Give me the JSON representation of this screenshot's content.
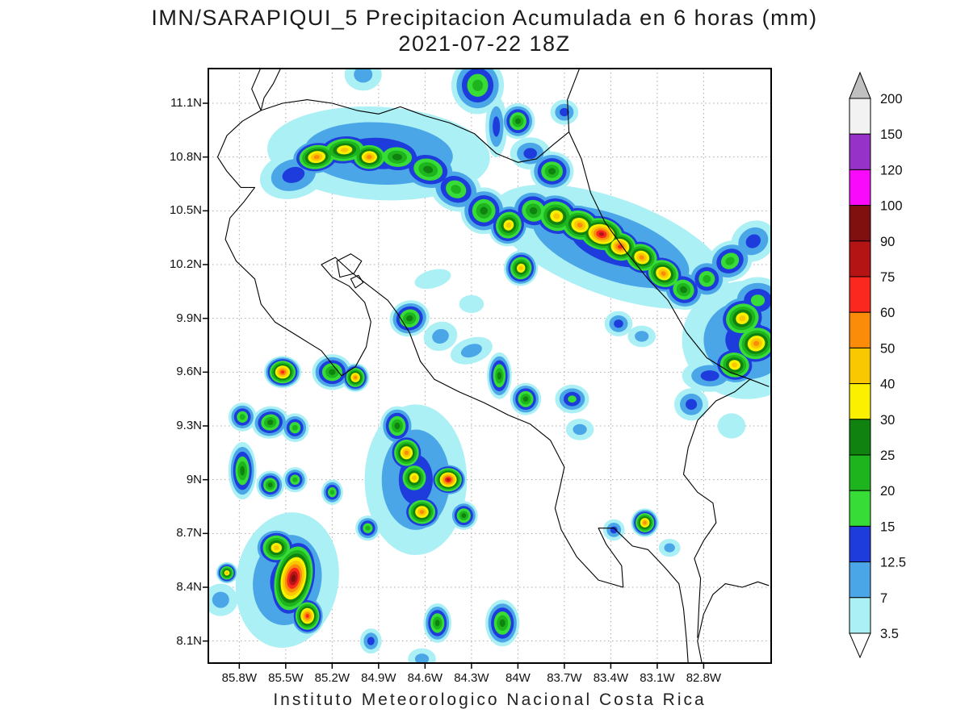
{
  "footer": "Instituto Meteorologico Nacional Costa Rica",
  "chart_data": {
    "type": "heatmap",
    "title": "IMN/SARAPIQUI_5 Precipitacion Acumulada en 6 horas (mm)",
    "subtitle": "2021-07-22 18Z",
    "units": "mm",
    "grid": true,
    "legend_position": "right",
    "x_range_lon_w": [
      86.0,
      82.364
    ],
    "y_range_lat_n": [
      7.977,
      11.2935
    ],
    "x_ticks": {
      "values": [
        85.8,
        85.5,
        85.2,
        84.9,
        84.6,
        84.3,
        84.0,
        83.7,
        83.4,
        83.1,
        82.8
      ],
      "labels": [
        "85.8W",
        "85.5W",
        "85.2W",
        "84.9W",
        "84.6W",
        "84.3W",
        "84W",
        "83.7W",
        "83.4W",
        "83.1W",
        "82.8W"
      ]
    },
    "y_ticks": {
      "values": [
        11.1,
        10.8,
        10.5,
        10.2,
        9.9,
        9.6,
        9.3,
        9.0,
        8.7,
        8.4,
        8.1
      ],
      "labels": [
        "11.1N",
        "10.8N",
        "10.5N",
        "10.2N",
        "9.9N",
        "9.6N",
        "9.3N",
        "9N",
        "8.7N",
        "8.4N",
        "8.1N"
      ]
    },
    "colorbar": {
      "levels": [
        3.5,
        7,
        12.5,
        15,
        20,
        25,
        30,
        40,
        50,
        60,
        75,
        90,
        100,
        120,
        150,
        200
      ],
      "labels_top_to_bottom": [
        "200",
        "150",
        "120",
        "100",
        "90",
        "75",
        "60",
        "50",
        "40",
        "30",
        "25",
        "20",
        "15",
        "12.5",
        "7",
        "3.5"
      ],
      "band_colors_low_to_high": [
        "#AAF0F5",
        "#4BA6E8",
        "#1E3CDC",
        "#37DC37",
        "#1EB41E",
        "#0F820F",
        "#FAF000",
        "#FAC800",
        "#FA8C0A",
        "#FA281E",
        "#B41414",
        "#801010",
        "#FA0AFA",
        "#9632C8",
        "#F2F2F2"
      ],
      "under_color": "#FFFFFF",
      "over_color": "#C0C0C0"
    },
    "cells_format": [
      "lon_w",
      "lat_n",
      "max_mm",
      "rx_deg",
      "ry_deg",
      "rotate_deg"
    ],
    "cells": [
      [
        85.45,
        10.7,
        13,
        0.22,
        0.13,
        -15
      ],
      [
        85.3,
        10.8,
        50,
        0.17,
        0.1,
        -8
      ],
      [
        85.12,
        10.84,
        40,
        0.2,
        0.1,
        -4
      ],
      [
        84.96,
        10.8,
        50,
        0.15,
        0.1,
        0
      ],
      [
        84.78,
        10.8,
        28,
        0.19,
        0.11,
        4
      ],
      [
        84.58,
        10.73,
        28,
        0.19,
        0.12,
        14
      ],
      [
        84.4,
        10.62,
        22,
        0.17,
        0.12,
        24
      ],
      [
        84.9,
        10.82,
        13,
        0.72,
        0.26,
        3
      ],
      [
        85.0,
        11.26,
        7,
        0.12,
        0.09,
        0
      ],
      [
        84.26,
        11.2,
        22,
        0.17,
        0.16,
        0
      ],
      [
        84.14,
        10.97,
        13,
        0.07,
        0.17,
        0
      ],
      [
        84.0,
        11.0,
        28,
        0.11,
        0.1,
        0
      ],
      [
        83.7,
        11.05,
        13,
        0.09,
        0.07,
        0
      ],
      [
        84.22,
        10.5,
        28,
        0.15,
        0.13,
        28
      ],
      [
        84.06,
        10.42,
        40,
        0.13,
        0.12,
        28
      ],
      [
        83.9,
        10.5,
        28,
        0.15,
        0.12,
        20
      ],
      [
        83.75,
        10.47,
        40,
        0.17,
        0.13,
        18
      ],
      [
        83.6,
        10.42,
        50,
        0.17,
        0.12,
        18
      ],
      [
        83.46,
        10.37,
        75,
        0.19,
        0.12,
        14
      ],
      [
        83.34,
        10.3,
        60,
        0.15,
        0.11,
        14
      ],
      [
        83.2,
        10.24,
        50,
        0.15,
        0.11,
        20
      ],
      [
        83.06,
        10.15,
        50,
        0.15,
        0.11,
        24
      ],
      [
        82.93,
        10.06,
        28,
        0.14,
        0.11,
        28
      ],
      [
        82.78,
        10.12,
        22,
        0.13,
        0.11,
        0
      ],
      [
        82.63,
        10.22,
        22,
        0.15,
        0.11,
        -28
      ],
      [
        82.48,
        10.33,
        13,
        0.15,
        0.11,
        -32
      ],
      [
        83.4,
        10.3,
        13,
        0.8,
        0.27,
        20
      ],
      [
        83.98,
        10.18,
        40,
        0.11,
        0.1,
        15
      ],
      [
        83.78,
        10.72,
        28,
        0.14,
        0.11,
        0
      ],
      [
        83.92,
        10.82,
        13,
        0.13,
        0.09,
        0
      ],
      [
        82.55,
        9.9,
        40,
        0.17,
        0.13,
        -18
      ],
      [
        82.46,
        9.76,
        50,
        0.17,
        0.13,
        -15
      ],
      [
        82.6,
        9.64,
        40,
        0.15,
        0.11,
        8
      ],
      [
        82.76,
        9.58,
        13,
        0.18,
        0.09,
        0
      ],
      [
        82.45,
        10.0,
        16,
        0.18,
        0.13,
        0
      ],
      [
        82.52,
        9.78,
        13,
        0.42,
        0.33,
        0
      ],
      [
        82.88,
        9.42,
        12.5,
        0.11,
        0.09,
        0
      ],
      [
        82.62,
        9.3,
        3.5,
        0.09,
        0.07,
        0
      ],
      [
        84.7,
        9.9,
        28,
        0.13,
        0.1,
        -18
      ],
      [
        84.5,
        9.8,
        10,
        0.11,
        0.08,
        -18
      ],
      [
        84.3,
        9.72,
        7,
        0.14,
        0.07,
        -18
      ],
      [
        84.12,
        9.58,
        28,
        0.08,
        0.13,
        0
      ],
      [
        83.95,
        9.45,
        28,
        0.1,
        0.09,
        0
      ],
      [
        83.65,
        9.45,
        16,
        0.11,
        0.08,
        0
      ],
      [
        83.6,
        9.28,
        7,
        0.09,
        0.06,
        0
      ],
      [
        83.35,
        9.87,
        13,
        0.09,
        0.07,
        0
      ],
      [
        83.2,
        9.8,
        7,
        0.09,
        0.06,
        0
      ],
      [
        84.55,
        10.12,
        3.5,
        0.12,
        0.05,
        -15
      ],
      [
        84.3,
        9.98,
        3.5,
        0.08,
        0.05,
        0
      ],
      [
        85.52,
        9.6,
        60,
        0.12,
        0.09,
        0
      ],
      [
        85.2,
        9.6,
        28,
        0.13,
        0.1,
        0
      ],
      [
        85.05,
        9.57,
        50,
        0.09,
        0.08,
        0
      ],
      [
        85.78,
        9.35,
        22,
        0.09,
        0.08,
        0
      ],
      [
        85.6,
        9.32,
        28,
        0.12,
        0.09,
        -12
      ],
      [
        85.44,
        9.29,
        22,
        0.09,
        0.08,
        0
      ],
      [
        85.78,
        9.05,
        28,
        0.09,
        0.16,
        0
      ],
      [
        85.6,
        8.97,
        28,
        0.09,
        0.08,
        0
      ],
      [
        85.44,
        9.0,
        22,
        0.08,
        0.07,
        0
      ],
      [
        85.2,
        8.93,
        22,
        0.07,
        0.07,
        0
      ],
      [
        84.78,
        9.3,
        28,
        0.11,
        0.11,
        0
      ],
      [
        84.72,
        9.15,
        50,
        0.12,
        0.11,
        0
      ],
      [
        84.67,
        9.01,
        40,
        0.12,
        0.11,
        0
      ],
      [
        84.45,
        9.0,
        75,
        0.12,
        0.09,
        0
      ],
      [
        84.62,
        8.82,
        50,
        0.13,
        0.1,
        0
      ],
      [
        84.35,
        8.8,
        28,
        0.09,
        0.08,
        0
      ],
      [
        84.97,
        8.73,
        22,
        0.08,
        0.07,
        0
      ],
      [
        84.66,
        9.0,
        13,
        0.33,
        0.42,
        0
      ],
      [
        85.45,
        8.45,
        90,
        0.16,
        0.24,
        12
      ],
      [
        85.56,
        8.62,
        40,
        0.14,
        0.11,
        0
      ],
      [
        85.36,
        8.24,
        60,
        0.11,
        0.11,
        0
      ],
      [
        85.49,
        8.44,
        13,
        0.33,
        0.38,
        10
      ],
      [
        85.88,
        8.48,
        40,
        0.07,
        0.06,
        0
      ],
      [
        85.92,
        8.33,
        7,
        0.11,
        0.09,
        0
      ],
      [
        84.52,
        8.2,
        28,
        0.09,
        0.11,
        0
      ],
      [
        84.1,
        8.2,
        28,
        0.11,
        0.13,
        0
      ],
      [
        84.95,
        8.1,
        13,
        0.07,
        0.07,
        0
      ],
      [
        84.62,
        8.0,
        7,
        0.09,
        0.06,
        0
      ],
      [
        83.18,
        8.76,
        50,
        0.09,
        0.08,
        0
      ],
      [
        83.38,
        8.72,
        13,
        0.07,
        0.06,
        0
      ],
      [
        83.02,
        8.62,
        7,
        0.07,
        0.05,
        0
      ]
    ],
    "coastlines": [
      [
        [
          85.66,
          11.3
        ],
        [
          85.72,
          11.18
        ],
        [
          85.66,
          11.06
        ],
        [
          85.78,
          11.0
        ],
        [
          85.88,
          10.92
        ],
        [
          85.94,
          10.8
        ],
        [
          85.88,
          10.72
        ],
        [
          85.79,
          10.63
        ],
        [
          85.7,
          10.63
        ],
        [
          85.77,
          10.55
        ],
        [
          85.86,
          10.46
        ],
        [
          85.89,
          10.34
        ],
        [
          85.82,
          10.22
        ],
        [
          85.7,
          10.12
        ],
        [
          85.66,
          9.98
        ],
        [
          85.57,
          9.88
        ],
        [
          85.42,
          9.8
        ],
        [
          85.27,
          9.72
        ],
        [
          85.14,
          9.58
        ],
        [
          85.05,
          9.63
        ],
        [
          84.98,
          9.74
        ],
        [
          84.95,
          9.88
        ],
        [
          84.99,
          9.99
        ],
        [
          85.09,
          10.08
        ],
        [
          85.2,
          10.13
        ],
        [
          85.27,
          10.2
        ],
        [
          85.18,
          10.24
        ],
        [
          85.08,
          10.16
        ],
        [
          84.96,
          10.08
        ],
        [
          84.84,
          10.0
        ],
        [
          84.78,
          9.93
        ],
        [
          84.7,
          9.82
        ],
        [
          84.63,
          9.66
        ],
        [
          84.54,
          9.56
        ],
        [
          84.38,
          9.49
        ],
        [
          84.22,
          9.43
        ],
        [
          84.06,
          9.36
        ],
        [
          83.92,
          9.31
        ],
        [
          83.79,
          9.22
        ],
        [
          83.7,
          9.07
        ],
        [
          83.73,
          8.95
        ],
        [
          83.76,
          8.84
        ],
        [
          83.72,
          8.72
        ],
        [
          83.62,
          8.57
        ],
        [
          83.48,
          8.44
        ],
        [
          83.32,
          8.4
        ],
        [
          83.33,
          8.52
        ],
        [
          83.43,
          8.64
        ],
        [
          83.48,
          8.73
        ],
        [
          83.38,
          8.73
        ],
        [
          83.26,
          8.63
        ],
        [
          83.16,
          8.61
        ],
        [
          83.05,
          8.51
        ],
        [
          82.96,
          8.42
        ],
        [
          82.93,
          8.28
        ],
        [
          82.91,
          8.1
        ],
        [
          82.9,
          7.97
        ]
      ],
      [
        [
          82.81,
          7.97
        ],
        [
          82.84,
          8.1
        ],
        [
          82.8,
          8.25
        ],
        [
          82.74,
          8.36
        ],
        [
          82.66,
          8.42
        ],
        [
          82.55,
          8.4
        ],
        [
          82.45,
          8.43
        ],
        [
          82.38,
          8.41
        ]
      ],
      [
        [
          83.6,
          11.3
        ],
        [
          83.68,
          11.12
        ],
        [
          83.67,
          10.94
        ],
        [
          83.59,
          10.79
        ],
        [
          83.53,
          10.6
        ],
        [
          83.44,
          10.44
        ],
        [
          83.3,
          10.27
        ],
        [
          83.16,
          10.12
        ],
        [
          83.03,
          10.0
        ],
        [
          82.91,
          9.82
        ],
        [
          82.78,
          9.68
        ],
        [
          82.63,
          9.6
        ],
        [
          82.5,
          9.56
        ],
        [
          82.38,
          9.52
        ]
      ],
      [
        [
          85.66,
          11.06
        ],
        [
          85.52,
          11.1
        ],
        [
          85.36,
          11.12
        ],
        [
          85.2,
          11.1
        ],
        [
          85.04,
          11.06
        ],
        [
          84.9,
          11.04
        ],
        [
          84.76,
          11.08
        ],
        [
          84.6,
          11.03
        ],
        [
          84.44,
          10.99
        ],
        [
          84.28,
          10.93
        ],
        [
          84.14,
          10.82
        ],
        [
          84.0,
          10.77
        ],
        [
          83.88,
          10.79
        ],
        [
          83.77,
          10.87
        ],
        [
          83.67,
          10.94
        ]
      ],
      [
        [
          85.53,
          11.3
        ],
        [
          85.58,
          11.21
        ],
        [
          85.64,
          11.13
        ],
        [
          85.66,
          11.06
        ]
      ],
      [
        [
          82.5,
          9.56
        ],
        [
          82.6,
          9.49
        ],
        [
          82.72,
          9.44
        ],
        [
          82.84,
          9.33
        ],
        [
          82.9,
          9.18
        ],
        [
          82.93,
          9.03
        ],
        [
          82.84,
          8.93
        ],
        [
          82.74,
          8.87
        ],
        [
          82.72,
          8.76
        ],
        [
          82.8,
          8.66
        ],
        [
          82.86,
          8.56
        ],
        [
          82.82,
          8.45
        ],
        [
          82.83,
          8.3
        ],
        [
          82.84,
          8.12
        ]
      ],
      [
        [
          85.17,
          10.22
        ],
        [
          85.08,
          10.26
        ],
        [
          85.01,
          10.22
        ],
        [
          85.06,
          10.15
        ],
        [
          85.15,
          10.13
        ],
        [
          85.17,
          10.22
        ]
      ],
      [
        [
          85.08,
          10.12
        ],
        [
          85.03,
          10.14
        ],
        [
          85.0,
          10.1
        ],
        [
          85.05,
          10.07
        ],
        [
          85.08,
          10.12
        ]
      ]
    ]
  }
}
